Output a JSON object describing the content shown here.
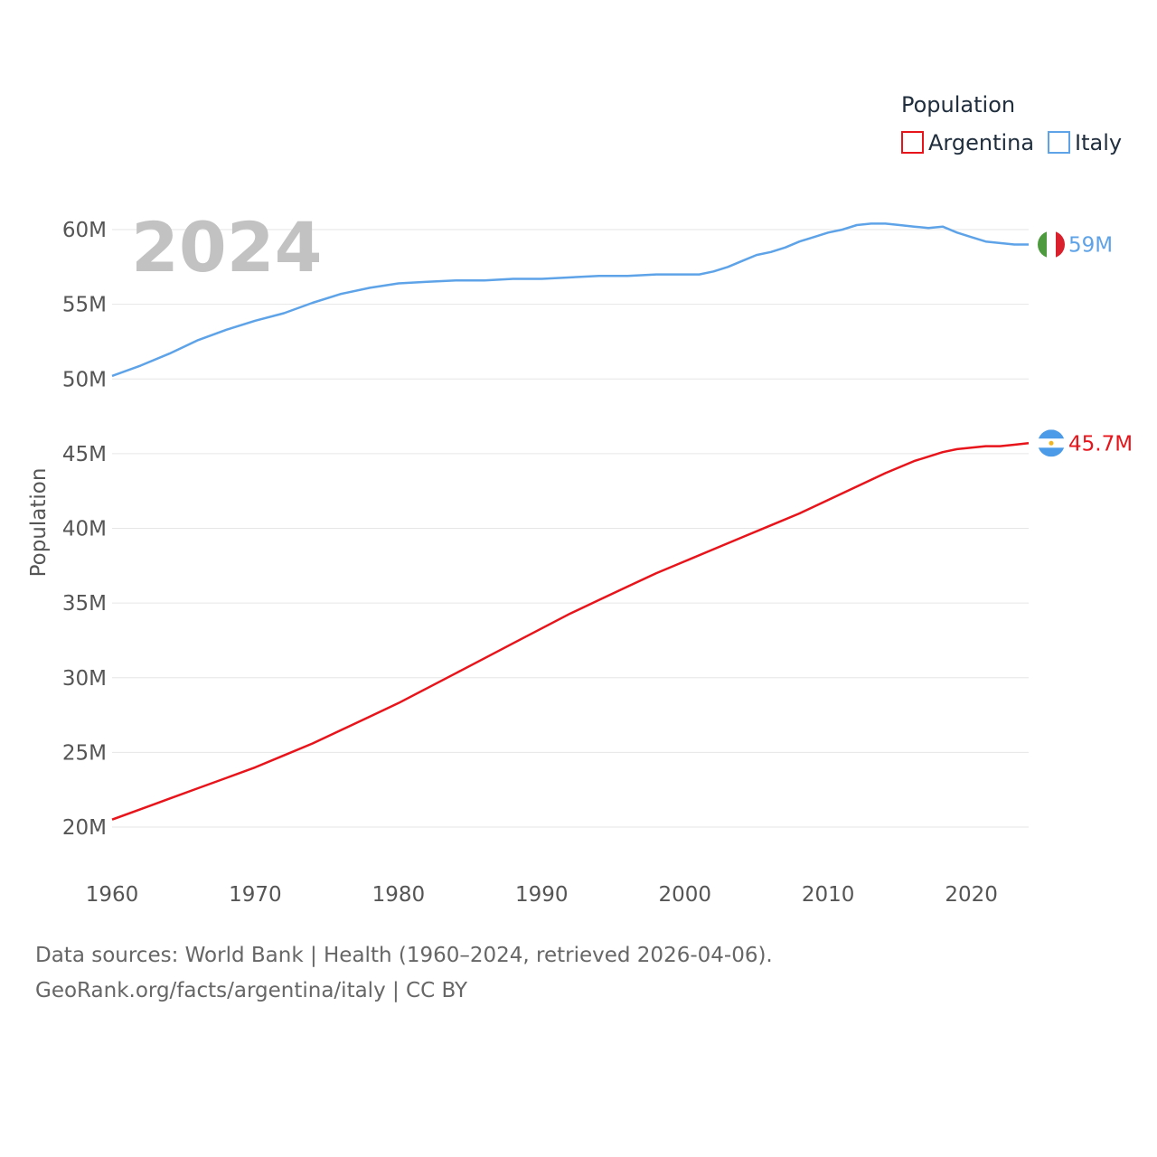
{
  "chart_data": {
    "type": "line",
    "title": "Population",
    "year_badge": "2024",
    "ylabel": "Population",
    "xlabel": "",
    "xlim": [
      1960,
      2024
    ],
    "ylim": [
      18000000,
      62500000
    ],
    "x_ticks": [
      {
        "value": 1960,
        "label": "1960"
      },
      {
        "value": 1970,
        "label": "1970"
      },
      {
        "value": 1980,
        "label": "1980"
      },
      {
        "value": 1990,
        "label": "1990"
      },
      {
        "value": 2000,
        "label": "2000"
      },
      {
        "value": 2010,
        "label": "2010"
      },
      {
        "value": 2020,
        "label": "2020"
      }
    ],
    "y_ticks": [
      {
        "value": 20000000,
        "label": "20M"
      },
      {
        "value": 25000000,
        "label": "25M"
      },
      {
        "value": 30000000,
        "label": "30M"
      },
      {
        "value": 35000000,
        "label": "35M"
      },
      {
        "value": 40000000,
        "label": "40M"
      },
      {
        "value": 45000000,
        "label": "45M"
      },
      {
        "value": 50000000,
        "label": "50M"
      },
      {
        "value": 55000000,
        "label": "55M"
      },
      {
        "value": 60000000,
        "label": "60M"
      }
    ],
    "grid": true,
    "legend_position": "top-right",
    "series": [
      {
        "name": "Argentina",
        "color": "#e8141b",
        "end_label": "45.7M",
        "flag": "argentina-flag",
        "x": [
          1960,
          1962,
          1964,
          1966,
          1968,
          1970,
          1972,
          1974,
          1976,
          1978,
          1980,
          1982,
          1984,
          1986,
          1988,
          1990,
          1992,
          1994,
          1996,
          1998,
          2000,
          2002,
          2004,
          2006,
          2008,
          2010,
          2012,
          2014,
          2016,
          2018,
          2019,
          2020,
          2021,
          2022,
          2023,
          2024
        ],
        "values": [
          20500000,
          21200000,
          21900000,
          22600000,
          23300000,
          24000000,
          24800000,
          25600000,
          26500000,
          27400000,
          28300000,
          29300000,
          30300000,
          31300000,
          32300000,
          33300000,
          34300000,
          35200000,
          36100000,
          37000000,
          37800000,
          38600000,
          39400000,
          40200000,
          41000000,
          41900000,
          42800000,
          43700000,
          44500000,
          45100000,
          45300000,
          45400000,
          45500000,
          45500000,
          45600000,
          45700000
        ]
      },
      {
        "name": "Italy",
        "color": "#5ea3e8",
        "end_label": "59M",
        "flag": "italy-flag",
        "x": [
          1960,
          1962,
          1964,
          1966,
          1968,
          1970,
          1972,
          1974,
          1976,
          1978,
          1980,
          1982,
          1984,
          1986,
          1988,
          1990,
          1992,
          1994,
          1996,
          1998,
          2000,
          2001,
          2002,
          2003,
          2004,
          2005,
          2006,
          2007,
          2008,
          2009,
          2010,
          2011,
          2012,
          2013,
          2014,
          2015,
          2016,
          2017,
          2018,
          2019,
          2020,
          2021,
          2022,
          2023,
          2024
        ],
        "values": [
          50200000,
          50900000,
          51700000,
          52600000,
          53300000,
          53900000,
          54400000,
          55100000,
          55700000,
          56100000,
          56400000,
          56500000,
          56600000,
          56600000,
          56700000,
          56700000,
          56800000,
          56900000,
          56900000,
          57000000,
          57000000,
          57000000,
          57200000,
          57500000,
          57900000,
          58300000,
          58500000,
          58800000,
          59200000,
          59500000,
          59800000,
          60000000,
          60300000,
          60400000,
          60400000,
          60300000,
          60200000,
          60100000,
          60200000,
          59800000,
          59500000,
          59200000,
          59100000,
          59000000,
          59000000
        ]
      }
    ]
  },
  "footer": {
    "line1": "Data sources: World Bank | Health (1960–2024, retrieved 2026-04-06).",
    "line2": "GeoRank.org/facts/argentina/italy | CC BY"
  }
}
